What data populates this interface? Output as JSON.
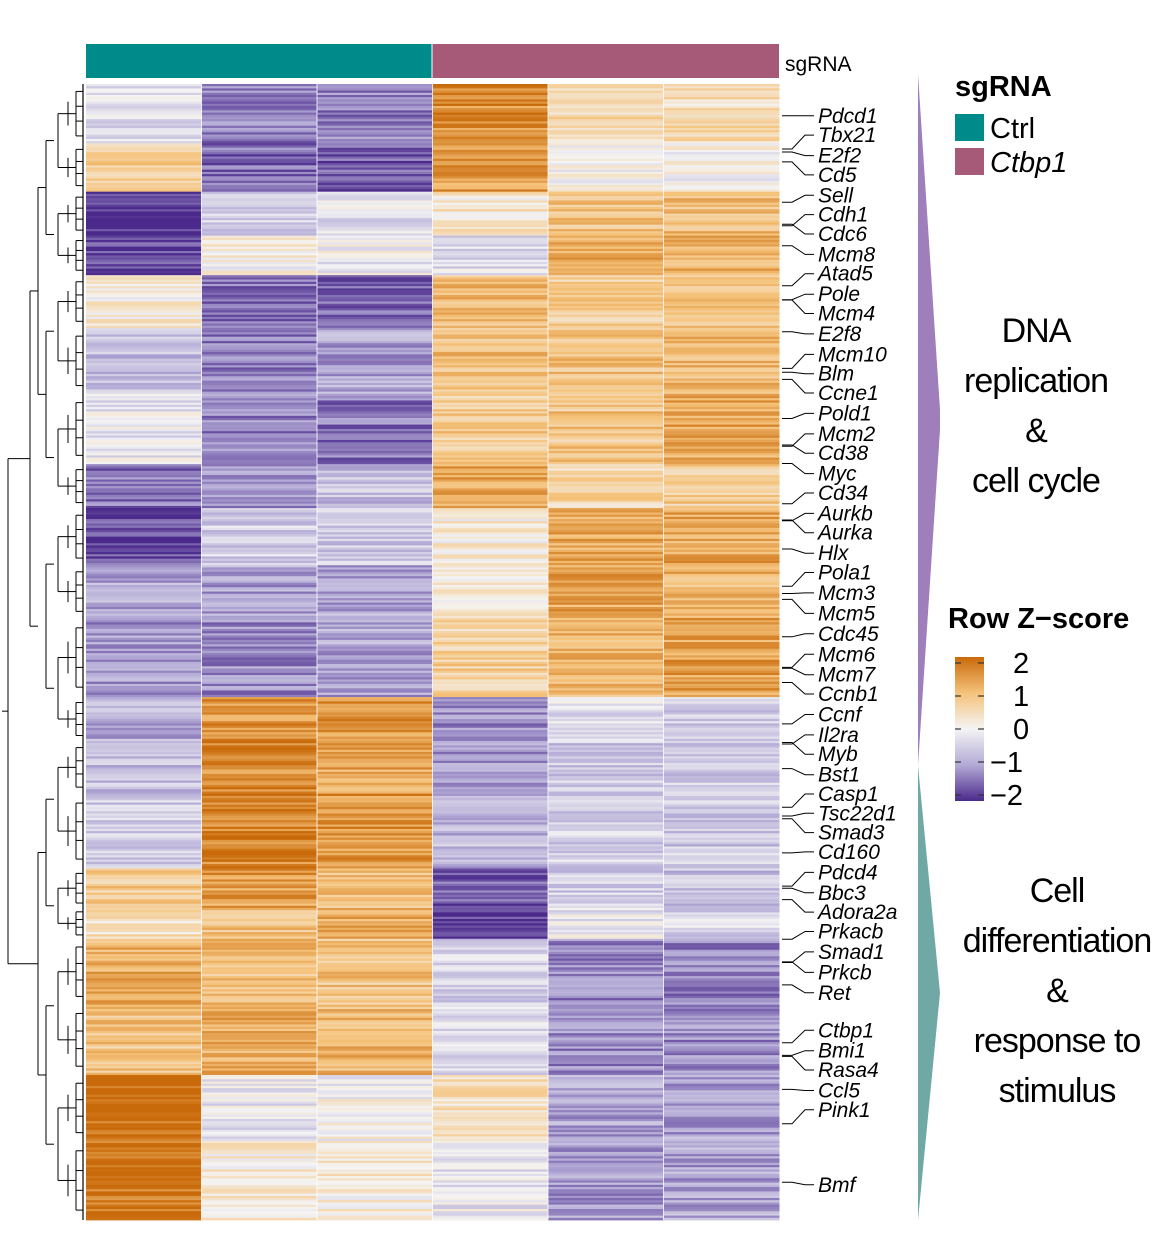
{
  "chart_data": {
    "type": "heatmap",
    "title": "",
    "column_annotation": {
      "name": "sgRNA",
      "groups": [
        {
          "label": "Ctrl",
          "color": "#008b8b",
          "italic": false,
          "columns": 3
        },
        {
          "label": "Ctbp1",
          "color": "#a65a78",
          "italic": true,
          "columns": 3
        }
      ]
    },
    "columns": 6,
    "color_scale": {
      "title": "Row Z−score",
      "min": -2,
      "max": 2,
      "ticks": [
        "2",
        "1",
        "0",
        "−1",
        "−2"
      ],
      "tick_values": [
        2,
        1,
        0,
        -1,
        -2
      ],
      "colors": {
        "low": "#4b2a8c",
        "mid_low": "#b3aad6",
        "mid": "#f4f4f4",
        "mid_high": "#f5c27a",
        "high": "#c96a0a"
      }
    },
    "blocks": [
      {
        "rows": 27,
        "values": [
          -0.3,
          -1.3,
          -1.3,
          1.6,
          0.5,
          0.5
        ]
      },
      {
        "rows": 22,
        "values": [
          0.7,
          -1.5,
          -1.6,
          1.4,
          0.1,
          0.0
        ]
      },
      {
        "rows": 20,
        "values": [
          -2.0,
          -0.5,
          -0.3,
          0.3,
          1.0,
          1.0
        ]
      },
      {
        "rows": 18,
        "values": [
          -1.8,
          0.1,
          -0.1,
          -0.3,
          1.2,
          1.2
        ]
      },
      {
        "rows": 24,
        "values": [
          0.2,
          -1.4,
          -1.6,
          1.0,
          0.7,
          0.8
        ]
      },
      {
        "rows": 30,
        "values": [
          -0.7,
          -1.3,
          -1.0,
          1.0,
          1.0,
          1.1
        ]
      },
      {
        "rows": 32,
        "values": [
          -0.2,
          -1.3,
          -1.4,
          0.8,
          0.9,
          1.3
        ]
      },
      {
        "rows": 20,
        "values": [
          -1.4,
          -1.2,
          -0.7,
          1.3,
          0.6,
          0.8
        ]
      },
      {
        "rows": 26,
        "values": [
          -1.7,
          -0.5,
          -0.6,
          0.2,
          1.3,
          1.3
        ]
      },
      {
        "rows": 24,
        "values": [
          -1.0,
          -1.0,
          -1.0,
          0.3,
          1.3,
          1.1
        ]
      },
      {
        "rows": 36,
        "values": [
          -1.1,
          -1.2,
          -1.0,
          0.7,
          1.1,
          1.4
        ]
      },
      {
        "rows": 20,
        "values": [
          -0.9,
          1.5,
          1.5,
          -1.2,
          -0.3,
          -0.5
        ]
      },
      {
        "rows": 24,
        "values": [
          -0.7,
          1.6,
          1.3,
          -1.1,
          -0.6,
          -0.6
        ]
      },
      {
        "rows": 34,
        "values": [
          -0.5,
          1.7,
          1.5,
          -0.8,
          -0.5,
          -0.6
        ]
      },
      {
        "rows": 18,
        "values": [
          0.8,
          1.4,
          1.0,
          -1.6,
          -0.5,
          -0.7
        ]
      },
      {
        "rows": 14,
        "values": [
          0.4,
          1.0,
          1.2,
          -1.9,
          -0.2,
          -0.4
        ]
      },
      {
        "rows": 30,
        "values": [
          1.2,
          1.0,
          0.9,
          -0.5,
          -1.3,
          -1.3
        ]
      },
      {
        "rows": 32,
        "values": [
          0.9,
          1.2,
          1.1,
          -0.3,
          -1.2,
          -1.2
        ]
      },
      {
        "rows": 30,
        "values": [
          2.0,
          -0.2,
          0.0,
          0.4,
          -1.0,
          -1.0
        ]
      },
      {
        "rows": 36,
        "values": [
          1.9,
          0.2,
          0.2,
          -0.2,
          -1.1,
          -1.0
        ]
      }
    ],
    "row_labels": [
      "Pdcd1",
      "Tbx21",
      "E2f2",
      "Cd5",
      "Sell",
      "Cdh1",
      "Cdc6",
      "Mcm8",
      "Atad5",
      "Pole",
      "Mcm4",
      "E2f8",
      "Mcm10",
      "Blm",
      "Ccne1",
      "Pold1",
      "Mcm2",
      "Cd38",
      "Myc",
      "Cd34",
      "Aurkb",
      "Aurka",
      "Hlx",
      "Pola1",
      "Mcm3",
      "Mcm5",
      "Cdc45",
      "Mcm6",
      "Mcm7",
      "Ccnb1",
      "Ccnf",
      "Il2ra",
      "Myb",
      "Bst1",
      "Casp1",
      "Tsc22d1",
      "Smad3",
      "Cd160",
      "Pdcd4",
      "Bbc3",
      "Adora2a",
      "Prkacb",
      "Smad1",
      "Prkcb",
      "Ret",
      "Ctbp1",
      "Bmi1",
      "Rasa4",
      "Ccl5",
      "Pink1",
      "Bmf"
    ],
    "row_label_positions": [
      0.028,
      0.045,
      0.063,
      0.08,
      0.098,
      0.115,
      0.132,
      0.15,
      0.167,
      0.185,
      0.202,
      0.22,
      0.238,
      0.255,
      0.272,
      0.29,
      0.308,
      0.325,
      0.343,
      0.36,
      0.378,
      0.395,
      0.413,
      0.43,
      0.448,
      0.466,
      0.484,
      0.502,
      0.52,
      0.537,
      0.555,
      0.573,
      0.59,
      0.608,
      0.625,
      0.642,
      0.659,
      0.676,
      0.694,
      0.712,
      0.729,
      0.746,
      0.764,
      0.782,
      0.8,
      0.833,
      0.851,
      0.868,
      0.886,
      0.903,
      0.969
    ],
    "row_groups": [
      {
        "label_lines": [
          "DNA",
          "replication",
          "&",
          "cell cycle"
        ],
        "color": "#9e7fbc",
        "row_range": [
          0.0,
          0.6
        ]
      },
      {
        "label_lines": [
          "Cell",
          "differentiation",
          "&",
          "response to",
          "stimulus"
        ],
        "color": "#6fa8a4",
        "row_range": [
          0.6,
          1.0
        ]
      }
    ],
    "dendrogram": "left"
  }
}
